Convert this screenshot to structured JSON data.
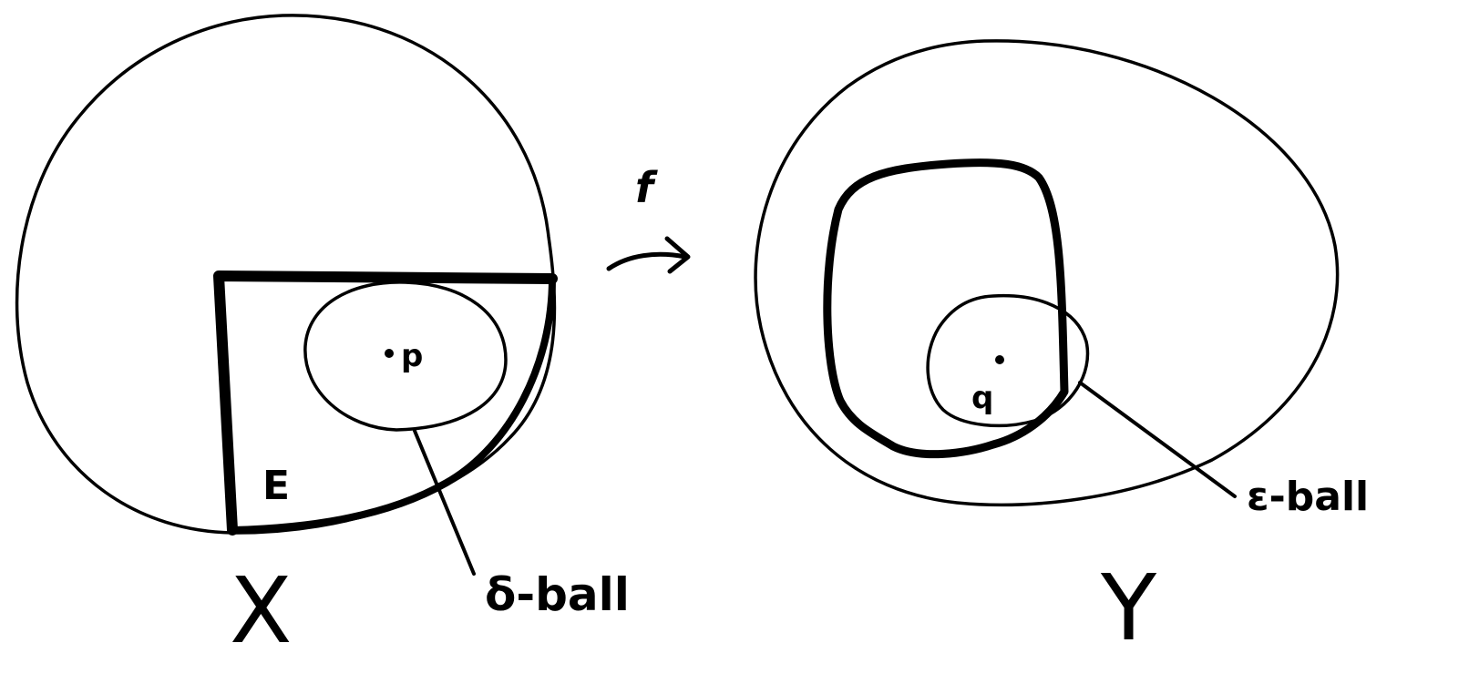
{
  "domain_x": {
    "label": "X",
    "subset_label": "E",
    "point_label": "p",
    "ball_label": "δ-ball"
  },
  "map": {
    "label": "f"
  },
  "domain_y": {
    "label": "Y",
    "point_label": "q",
    "ball_label": "ε-ball"
  },
  "colors": {
    "ink": "#000000",
    "paper": "#ffffff"
  }
}
